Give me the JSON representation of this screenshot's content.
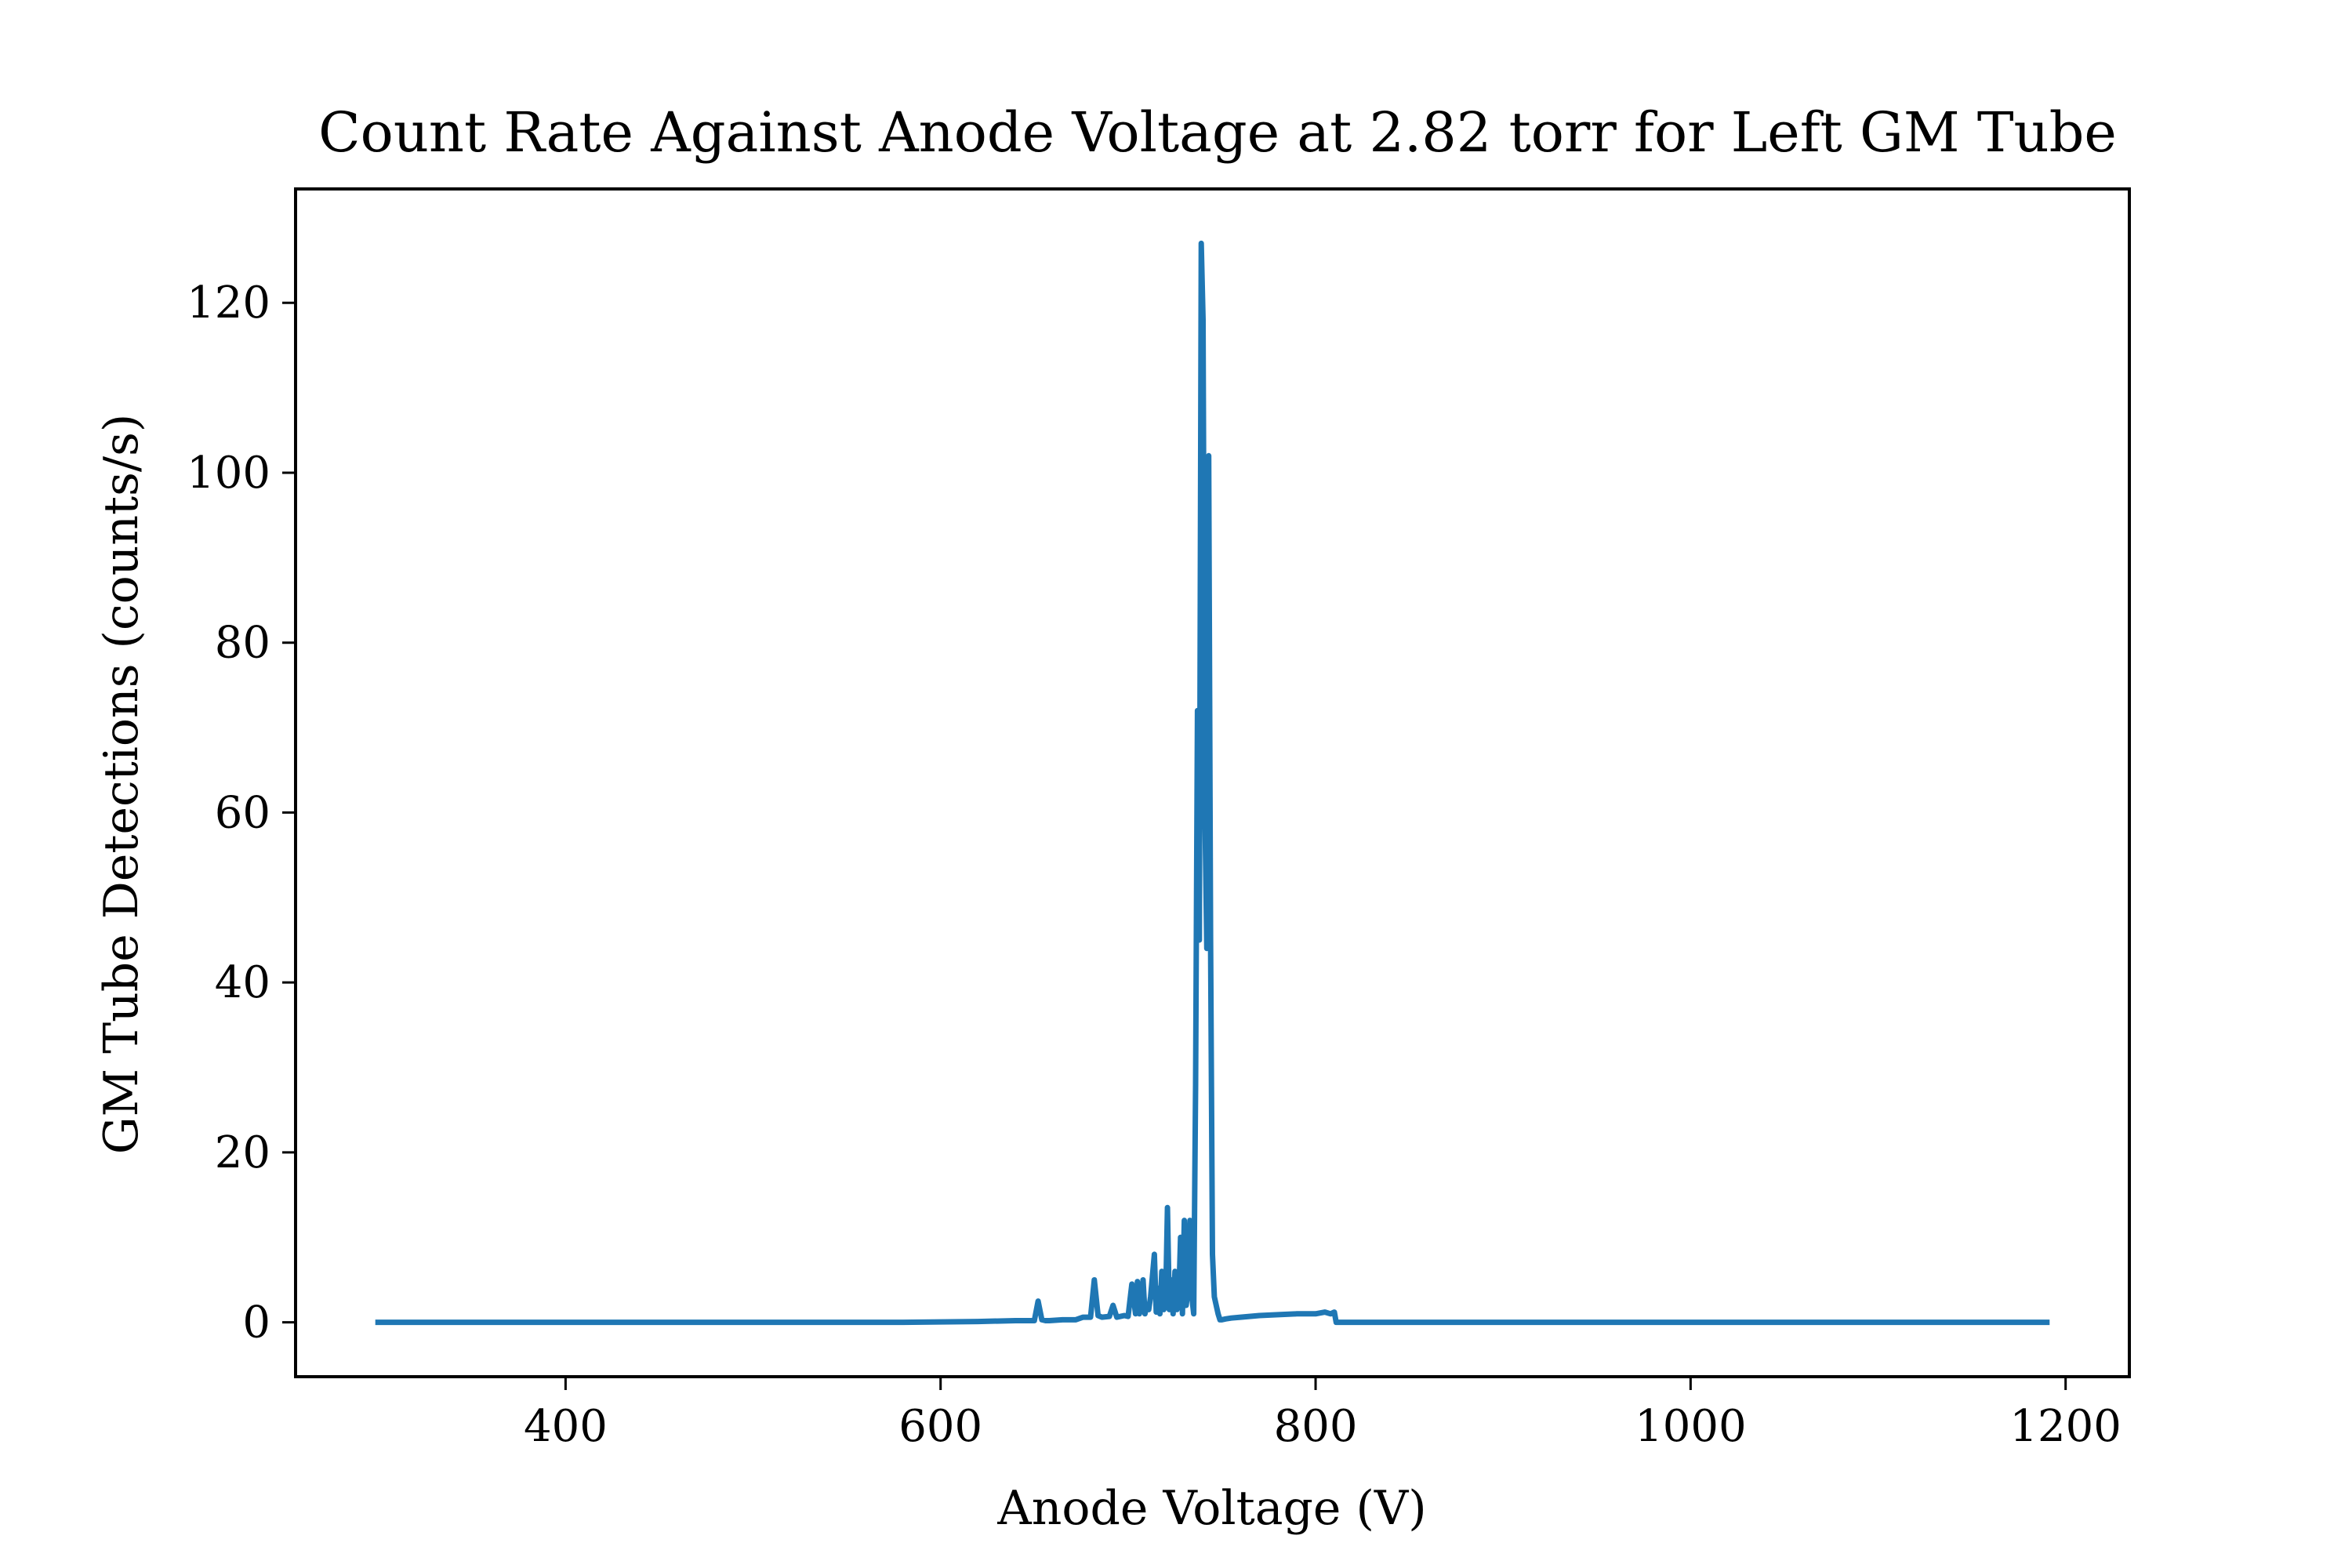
{
  "chart_data": {
    "type": "line",
    "title": "Count Rate Against Anode Voltage at 2.82 torr for Left GM Tube",
    "xlabel": "Anode Voltage (V)",
    "ylabel": "GM Tube Detections (counts/s)",
    "xlim": [
      256,
      1234
    ],
    "ylim": [
      -6.4,
      133.4
    ],
    "x_ticks": [
      400,
      600,
      800,
      1000,
      1200
    ],
    "y_ticks": [
      0,
      20,
      40,
      60,
      80,
      100,
      120
    ],
    "grid": false,
    "series": [
      {
        "color": "#1f77b4",
        "x": [
          300,
          400,
          500,
          580,
          620,
          640,
          650,
          652,
          654,
          656,
          658,
          665,
          672,
          676,
          680,
          682,
          684,
          686,
          690,
          692,
          694,
          696,
          698,
          700,
          702,
          704,
          705,
          706,
          707,
          708,
          709,
          710,
          711,
          712,
          714,
          715,
          716,
          717,
          718,
          719,
          720,
          721,
          722,
          723,
          724,
          725,
          726,
          727,
          728,
          729,
          730,
          731,
          732,
          733,
          734,
          735,
          736,
          737,
          738,
          739,
          740,
          741,
          742,
          743,
          744,
          745,
          746,
          747,
          748,
          749,
          750,
          752,
          755,
          760,
          770,
          780,
          790,
          800,
          805,
          808,
          810,
          811,
          815,
          900,
          1000,
          1100,
          1190
        ],
        "y": [
          0,
          0,
          0,
          0,
          0.1,
          0.2,
          0.2,
          2.5,
          0.3,
          0.2,
          0.2,
          0.3,
          0.3,
          0.6,
          0.6,
          5.0,
          0.8,
          0.6,
          0.7,
          2.0,
          0.6,
          0.7,
          0.8,
          0.7,
          4.5,
          1.0,
          4.8,
          1.0,
          1.5,
          5.0,
          1.0,
          2.0,
          1.5,
          3.0,
          8.0,
          1.2,
          4.0,
          1.0,
          6.0,
          1.5,
          2.0,
          13.5,
          1.5,
          5.0,
          1.0,
          6.0,
          1.5,
          2.5,
          10.0,
          1.0,
          12.0,
          2.0,
          4.0,
          12.0,
          3.0,
          1.0,
          28.0,
          72.0,
          45.0,
          127.0,
          118.0,
          60.0,
          44.0,
          102.0,
          45.0,
          8.0,
          3.0,
          2.0,
          1.0,
          0.3,
          0.3,
          0.4,
          0.5,
          0.6,
          0.8,
          0.9,
          1.0,
          1.0,
          1.2,
          1.0,
          1.2,
          0,
          0,
          0,
          0,
          0,
          0
        ]
      }
    ]
  }
}
